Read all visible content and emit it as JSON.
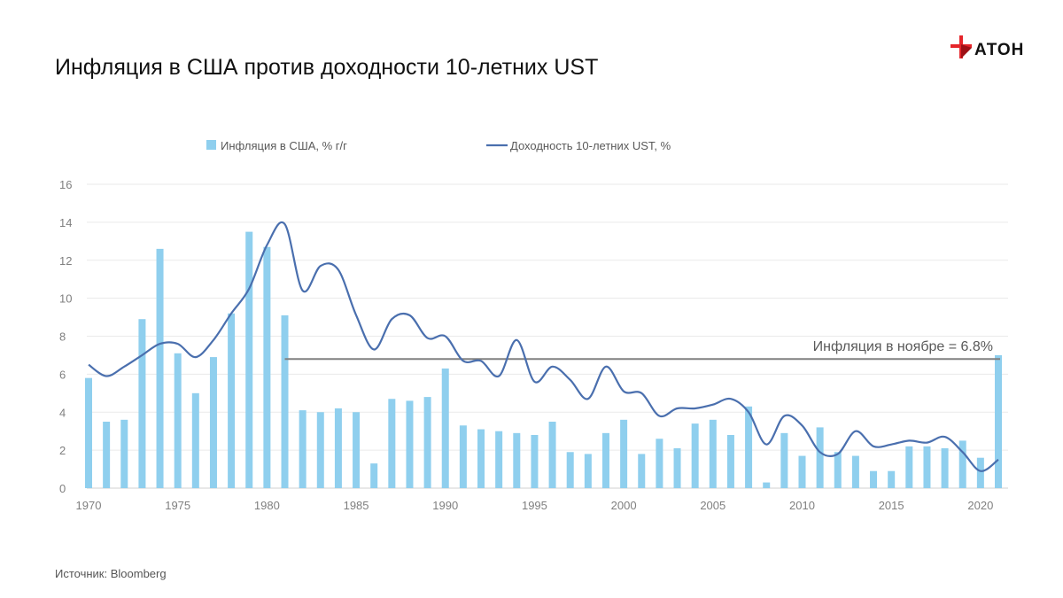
{
  "title": "Инфляция в США против доходности 10-летних UST",
  "logo": {
    "text": "АТОН",
    "icon": "aton-logo-icon",
    "color": "#e5252a"
  },
  "source": "Источник: Bloomberg",
  "colors": {
    "bar": "#8fcfee",
    "line": "#4a6fae",
    "ref_line": "#808080",
    "grid": "#eaeaea"
  },
  "chart_data": {
    "type": "bar+line",
    "x": [
      1970,
      1971,
      1972,
      1973,
      1974,
      1975,
      1976,
      1977,
      1978,
      1979,
      1980,
      1981,
      1982,
      1983,
      1984,
      1985,
      1986,
      1987,
      1988,
      1989,
      1990,
      1991,
      1992,
      1993,
      1994,
      1995,
      1996,
      1997,
      1998,
      1999,
      2000,
      2001,
      2002,
      2003,
      2004,
      2005,
      2006,
      2007,
      2008,
      2009,
      2010,
      2011,
      2012,
      2013,
      2014,
      2015,
      2016,
      2017,
      2018,
      2019,
      2020,
      2021
    ],
    "series": [
      {
        "name": "Инфляция в США, % г/г",
        "type": "bar",
        "values": [
          5.8,
          3.5,
          3.6,
          8.9,
          12.6,
          7.1,
          5.0,
          6.9,
          9.2,
          13.5,
          12.7,
          9.1,
          4.1,
          4.0,
          4.2,
          4.0,
          1.3,
          4.7,
          4.6,
          4.8,
          6.3,
          3.3,
          3.1,
          3.0,
          2.9,
          2.8,
          3.5,
          1.9,
          1.8,
          2.9,
          3.6,
          1.8,
          2.6,
          2.1,
          3.4,
          3.6,
          2.8,
          4.3,
          0.3,
          2.9,
          1.7,
          3.2,
          1.9,
          1.7,
          0.9,
          0.9,
          2.2,
          2.2,
          2.1,
          2.5,
          1.6,
          7.0
        ]
      },
      {
        "name": "Доходность 10-летних UST, %",
        "type": "line",
        "values": [
          6.5,
          5.9,
          6.4,
          7.0,
          7.6,
          7.6,
          6.9,
          7.8,
          9.2,
          10.5,
          12.8,
          13.9,
          10.4,
          11.7,
          11.5,
          9.1,
          7.3,
          8.9,
          9.1,
          7.9,
          8.0,
          6.7,
          6.7,
          5.9,
          7.8,
          5.6,
          6.4,
          5.7,
          4.7,
          6.4,
          5.1,
          5.0,
          3.8,
          4.2,
          4.2,
          4.4,
          4.7,
          4.0,
          2.3,
          3.8,
          3.3,
          1.9,
          1.8,
          3.0,
          2.2,
          2.3,
          2.5,
          2.4,
          2.7,
          1.9,
          0.9,
          1.5
        ]
      }
    ],
    "legend": [
      "Инфляция в США, % г/г",
      "Доходность 10-летних UST, %"
    ],
    "legend_position": "top",
    "reference_line": {
      "value": 6.8,
      "from_x": 1981,
      "to_x": 2021,
      "label": "Инфляция в ноябре = 6.8%"
    },
    "ylim": [
      0,
      16
    ],
    "yticks": [
      0,
      2,
      4,
      6,
      8,
      10,
      12,
      14,
      16
    ],
    "xticks": [
      1970,
      1975,
      1980,
      1985,
      1990,
      1995,
      2000,
      2005,
      2010,
      2015,
      2020
    ],
    "xlim": [
      1970,
      2021
    ],
    "grid": true
  }
}
